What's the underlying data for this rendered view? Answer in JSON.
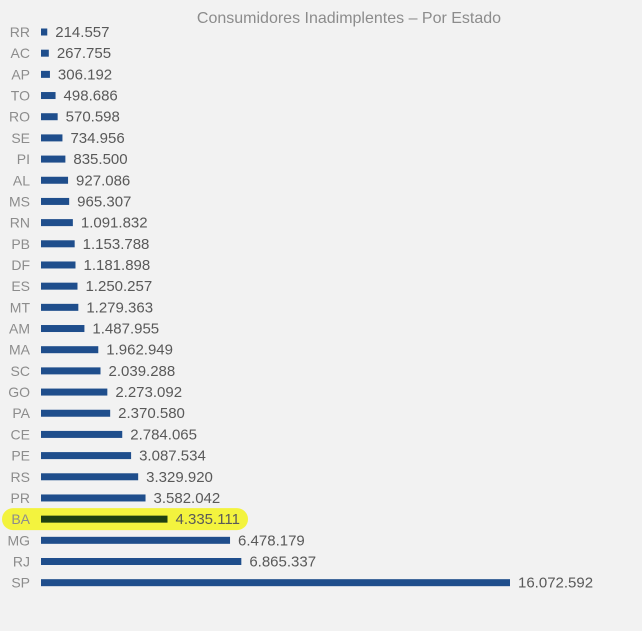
{
  "chart_data": {
    "type": "bar",
    "orientation": "horizontal",
    "title": "Consumidores Inadimplentes  – Por Estado",
    "categories": [
      "RR",
      "AC",
      "AP",
      "TO",
      "RO",
      "SE",
      "PI",
      "AL",
      "MS",
      "RN",
      "PB",
      "DF",
      "ES",
      "MT",
      "AM",
      "MA",
      "SC",
      "GO",
      "PA",
      "CE",
      "PE",
      "RS",
      "PR",
      "BA",
      "MG",
      "RJ",
      "SP"
    ],
    "values": [
      214557,
      267755,
      306192,
      498686,
      570598,
      734956,
      835500,
      927086,
      965307,
      1091832,
      1153788,
      1181898,
      1250257,
      1279363,
      1487955,
      1962949,
      2039288,
      2273092,
      2370580,
      2784065,
      3087534,
      3329920,
      3582042,
      4335111,
      6478179,
      6865337,
      16072592
    ],
    "value_labels": [
      "214.557",
      "267.755",
      "306.192",
      "498.686",
      "570.598",
      "734.956",
      "835.500",
      "927.086",
      "965.307",
      "1.091.832",
      "1.153.788",
      "1.181.898",
      "1.250.257",
      "1.279.363",
      "1.487.955",
      "1.962.949",
      "2.039.288",
      "2.273.092",
      "2.370.580",
      "2.784.065",
      "3.087.534",
      "3.329.920",
      "3.582.042",
      "4.335.111",
      "6.478.179",
      "6.865.337",
      "16.072.592"
    ],
    "xlim": [
      0,
      16072592
    ],
    "grid": false,
    "bar_color": "#1f4e8c",
    "highlight": {
      "category": "BA",
      "bar_color": "#1e3f12",
      "marker_color": "#f3f32a"
    }
  }
}
